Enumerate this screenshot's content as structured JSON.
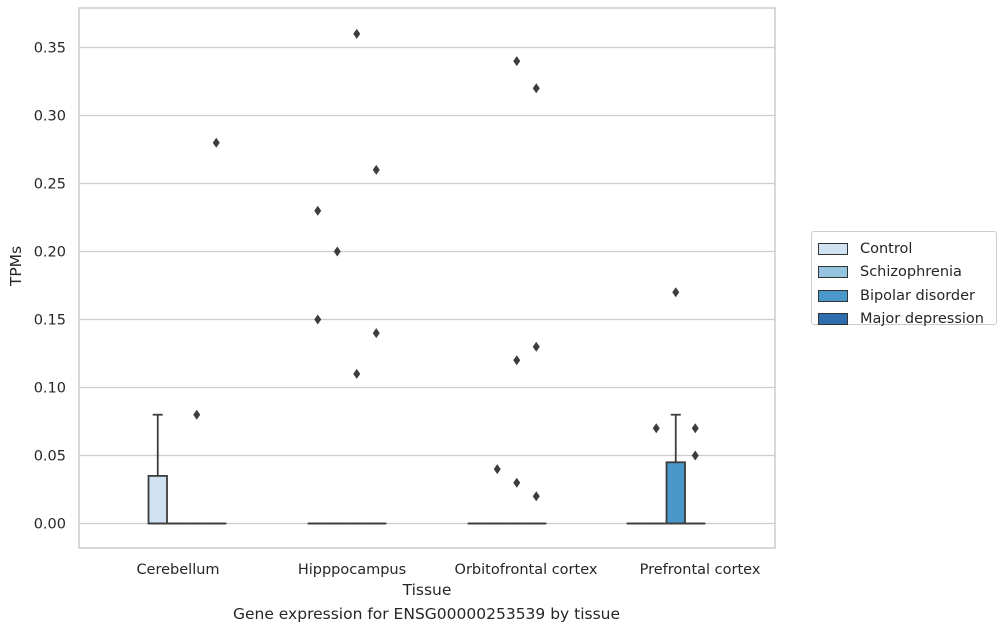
{
  "chart_data": {
    "type": "box",
    "title": "Gene expression for ENSG00000253539 by tissue",
    "xlabel": "Tissue",
    "ylabel": "TPMs",
    "categories": [
      "Cerebellum",
      "Hipppocampus",
      "Orbitofrontal cortex",
      "Prefrontal cortex"
    ],
    "ylim": [
      -0.018,
      0.38
    ],
    "yticks": [
      "0.00",
      "0.05",
      "0.10",
      "0.15",
      "0.20",
      "0.25",
      "0.30",
      "0.35"
    ],
    "grid": "horizontal",
    "legend_position": "right",
    "series": [
      {
        "name": "Control",
        "color": "#d0e1f2",
        "boxes": [
          {
            "q1": 0,
            "median": 0,
            "q3": 0.035,
            "whisker_low": 0,
            "whisker_high": 0.08,
            "outliers": []
          },
          {
            "q1": 0,
            "median": 0,
            "q3": 0,
            "whisker_low": 0,
            "whisker_high": 0,
            "outliers": [
              0.15,
              0.23
            ]
          },
          {
            "q1": 0,
            "median": 0,
            "q3": 0,
            "whisker_low": 0,
            "whisker_high": 0,
            "outliers": []
          },
          {
            "q1": 0,
            "median": 0,
            "q3": 0,
            "whisker_low": 0,
            "whisker_high": 0,
            "outliers": []
          }
        ]
      },
      {
        "name": "Schizophrenia",
        "color": "#94c4df",
        "boxes": [
          {
            "q1": 0,
            "median": 0,
            "q3": 0,
            "whisker_low": 0,
            "whisker_high": 0,
            "outliers": []
          },
          {
            "q1": 0,
            "median": 0,
            "q3": 0,
            "whisker_low": 0,
            "whisker_high": 0,
            "outliers": [
              0.2
            ]
          },
          {
            "q1": 0,
            "median": 0,
            "q3": 0,
            "whisker_low": 0,
            "whisker_high": 0,
            "outliers": [
              0.04
            ]
          },
          {
            "q1": 0,
            "median": 0,
            "q3": 0,
            "whisker_low": 0,
            "whisker_high": 0,
            "outliers": [
              0.07
            ]
          }
        ]
      },
      {
        "name": "Bipolar disorder",
        "color": "#4a98c9",
        "boxes": [
          {
            "q1": 0,
            "median": 0,
            "q3": 0,
            "whisker_low": 0,
            "whisker_high": 0,
            "outliers": [
              0.08
            ]
          },
          {
            "q1": 0,
            "median": 0,
            "q3": 0,
            "whisker_low": 0,
            "whisker_high": 0,
            "outliers": [
              0.11,
              0.36
            ]
          },
          {
            "q1": 0,
            "median": 0,
            "q3": 0,
            "whisker_low": 0,
            "whisker_high": 0,
            "outliers": [
              0.03,
              0.12,
              0.34
            ]
          },
          {
            "q1": 0,
            "median": 0,
            "q3": 0.045,
            "whisker_low": 0,
            "whisker_high": 0.08,
            "outliers": [
              0.17
            ]
          }
        ]
      },
      {
        "name": "Major depression",
        "color": "#2e6eaf",
        "boxes": [
          {
            "q1": 0,
            "median": 0,
            "q3": 0,
            "whisker_low": 0,
            "whisker_high": 0,
            "outliers": [
              0.28
            ]
          },
          {
            "q1": 0,
            "median": 0,
            "q3": 0,
            "whisker_low": 0,
            "whisker_high": 0,
            "outliers": [
              0.14,
              0.26
            ]
          },
          {
            "q1": 0,
            "median": 0,
            "q3": 0,
            "whisker_low": 0,
            "whisker_high": 0,
            "outliers": [
              0.02,
              0.13,
              0.32
            ]
          },
          {
            "q1": 0,
            "median": 0,
            "q3": 0,
            "whisker_low": 0,
            "whisker_high": 0,
            "outliers": [
              0.05,
              0.07
            ]
          }
        ]
      }
    ]
  }
}
